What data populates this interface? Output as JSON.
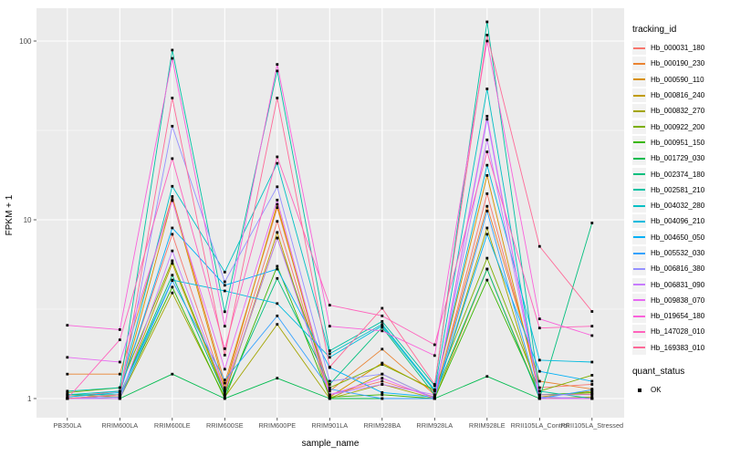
{
  "chart_data": {
    "type": "line",
    "title": "",
    "xlabel": "sample_name",
    "ylabel": "FPKM + 1",
    "y_scale": "log10",
    "y_ticks": [
      1,
      10,
      100
    ],
    "y_minor_ticks": [
      3.162,
      31.62
    ],
    "ylim": [
      0.78,
      150
    ],
    "grid": "on",
    "legend_position": "right",
    "point_shape": "filled-square",
    "point_color": "#000000",
    "panel_background": "#EBEBEB",
    "gridline_color": "#FFFFFF",
    "axis_text_color": "#4D4D4D",
    "categories": [
      "PB350LA",
      "RRIM600LA",
      "RRIM600LE",
      "RRIM600SE",
      "RRIM600PE",
      "RRIM901LA",
      "RRIM928BA",
      "RRIM928LA",
      "RRIM928LE",
      "RRII105LA_Control",
      "RRII105LA_Stressed"
    ],
    "series": [
      {
        "name": "Hb_000031_180",
        "color": "#F8766D",
        "values": [
          1.02,
          1.1,
          8.3,
          1.12,
          9.8,
          1.05,
          1.25,
          1.02,
          14.0,
          1.15,
          1.2
        ]
      },
      {
        "name": "Hb_000190_230",
        "color": "#EA8331",
        "values": [
          1.37,
          1.37,
          13.5,
          1.22,
          11.7,
          1.1,
          1.89,
          1.05,
          11.9,
          1.25,
          1.13
        ]
      },
      {
        "name": "Hb_000590_110",
        "color": "#D89000",
        "values": [
          1.0,
          1.05,
          13.0,
          1.15,
          12.2,
          1.02,
          1.58,
          1.1,
          17.7,
          1.05,
          1.06
        ]
      },
      {
        "name": "Hb_000816_240",
        "color": "#C09B00",
        "values": [
          1.05,
          1.02,
          5.7,
          1.05,
          8.5,
          1.0,
          1.37,
          1.0,
          5.3,
          1.02,
          1.1
        ]
      },
      {
        "name": "Hb_000832_270",
        "color": "#A3A500",
        "values": [
          1.0,
          1.0,
          3.9,
          1.02,
          2.6,
          1.0,
          1.2,
          1.0,
          9.0,
          1.0,
          1.02
        ]
      },
      {
        "name": "Hb_000922_200",
        "color": "#7CAE00",
        "values": [
          1.08,
          1.15,
          5.9,
          1.08,
          7.9,
          1.15,
          1.55,
          1.12,
          6.1,
          1.1,
          1.35
        ]
      },
      {
        "name": "Hb_000951_150",
        "color": "#39B600",
        "values": [
          1.0,
          1.02,
          4.2,
          1.0,
          5.5,
          1.02,
          1.05,
          1.0,
          4.6,
          1.05,
          1.08
        ]
      },
      {
        "name": "Hb_001729_030",
        "color": "#00BB4E",
        "values": [
          1.0,
          1.0,
          1.37,
          1.0,
          1.3,
          1.0,
          1.0,
          1.0,
          1.33,
          1.0,
          1.0
        ]
      },
      {
        "name": "Hb_002374_180",
        "color": "#00BF7D",
        "values": [
          1.05,
          1.05,
          4.9,
          1.05,
          4.7,
          1.2,
          2.5,
          1.05,
          5.3,
          1.0,
          9.6
        ]
      },
      {
        "name": "Hb_002581_210",
        "color": "#00C1A3",
        "values": [
          1.1,
          1.15,
          89.0,
          3.06,
          68.0,
          1.85,
          2.7,
          1.18,
          128.0,
          1.1,
          1.0
        ]
      },
      {
        "name": "Hb_004032_280",
        "color": "#00BFC4",
        "values": [
          1.05,
          1.1,
          15.4,
          5.1,
          20.7,
          1.78,
          2.6,
          1.12,
          54.0,
          1.0,
          1.0
        ]
      },
      {
        "name": "Hb_004096_210",
        "color": "#00BADE",
        "values": [
          1.0,
          1.05,
          4.6,
          4.0,
          3.4,
          1.7,
          2.55,
          1.1,
          20.2,
          1.64,
          1.6
        ]
      },
      {
        "name": "Hb_004650_050",
        "color": "#00B0F6",
        "values": [
          1.02,
          1.08,
          9.0,
          4.3,
          5.3,
          1.49,
          1.08,
          1.02,
          8.3,
          1.42,
          1.25
        ]
      },
      {
        "name": "Hb_005532_030",
        "color": "#35A2FF",
        "values": [
          1.0,
          1.0,
          4.57,
          1.27,
          2.9,
          1.13,
          1.0,
          1.0,
          11.2,
          1.0,
          1.12
        ]
      },
      {
        "name": "Hb_006816_380",
        "color": "#9590FF",
        "values": [
          1.0,
          1.02,
          33.4,
          4.5,
          15.3,
          1.25,
          1.37,
          1.0,
          36.5,
          1.02,
          1.0
        ]
      },
      {
        "name": "Hb_006831_090",
        "color": "#C77CFF",
        "values": [
          1.0,
          1.0,
          6.7,
          1.1,
          7.9,
          1.05,
          1.2,
          1.05,
          28.0,
          1.05,
          1.05
        ]
      },
      {
        "name": "Hb_009838_070",
        "color": "#E76BF3",
        "values": [
          1.7,
          1.6,
          12.8,
          1.46,
          12.9,
          1.05,
          1.3,
          1.0,
          38.0,
          1.0,
          1.0
        ]
      },
      {
        "name": "Hb_019654_180",
        "color": "#FA62DB",
        "values": [
          2.57,
          2.43,
          80.0,
          2.54,
          74.0,
          2.54,
          2.39,
          1.74,
          100.0,
          2.79,
          2.25
        ]
      },
      {
        "name": "Hb_147028_010",
        "color": "#FF62BC",
        "values": [
          1.0,
          2.13,
          22.0,
          1.9,
          22.5,
          3.33,
          2.9,
          2.0,
          24.0,
          2.48,
          2.54
        ]
      },
      {
        "name": "Hb_169383_010",
        "color": "#FF6A98",
        "values": [
          1.0,
          1.05,
          48.0,
          1.75,
          48.0,
          1.5,
          3.2,
          1.2,
          108.0,
          7.1,
          3.07
        ]
      }
    ]
  },
  "legend": {
    "tracking_title": "tracking_id",
    "quant_title": "quant_status",
    "quant_items": [
      {
        "label": "OK"
      }
    ]
  }
}
